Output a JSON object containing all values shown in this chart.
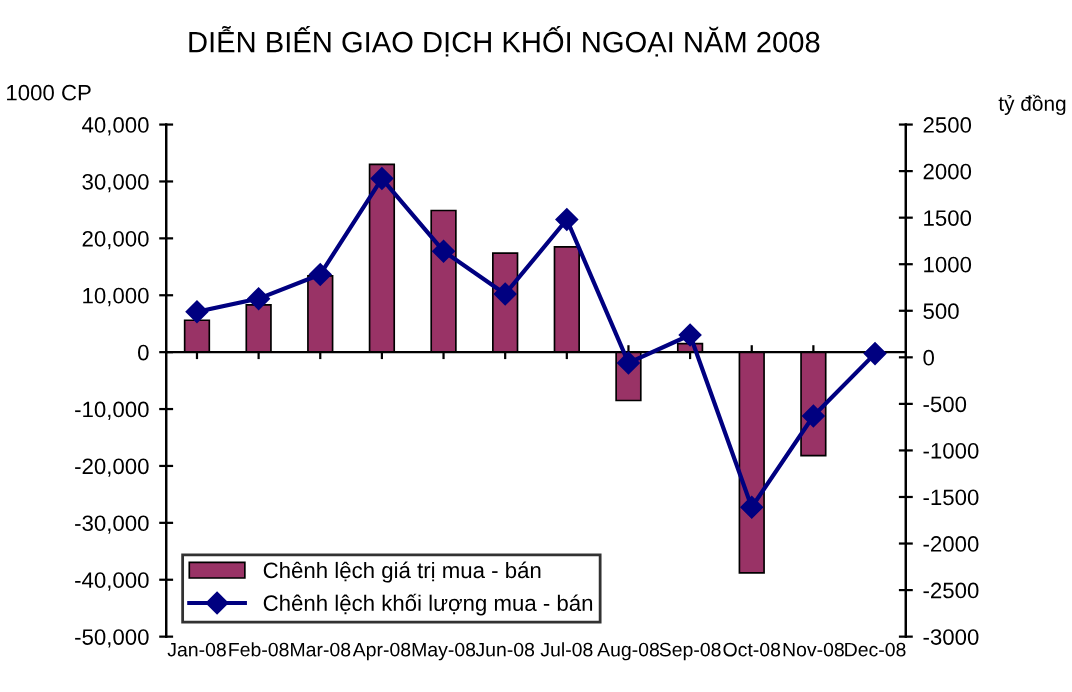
{
  "chart_data": {
    "type": "bar",
    "title": "DIỄN BIẾN GIAO DỊCH KHỐI NGOẠI NĂM 2008",
    "ylabel": "1000 CP",
    "y2label": "tỷ đồng",
    "categories": [
      "Jan-08",
      "Feb-08",
      "Mar-08",
      "Apr-08",
      "May-08",
      "Jun-08",
      "Jul-08",
      "Aug-08",
      "Sep-08",
      "Oct-08",
      "Nov-08",
      "Dec-08"
    ],
    "series": [
      {
        "name": "Chênh lệch giá trị mua - bán",
        "color": "#993366",
        "values": [
          5600,
          8300,
          13400,
          33000,
          24900,
          17400,
          18500,
          -8500,
          1500,
          -38800,
          -18200,
          null
        ]
      },
      {
        "name": "Chênh lệch khối lượng mua - bán",
        "type": "line",
        "axis": "y2",
        "color": "#000080",
        "marker": "diamond",
        "values": [
          490,
          630,
          890,
          1920,
          1140,
          680,
          1480,
          -60,
          240,
          -1610,
          -630,
          40
        ]
      }
    ],
    "ylim": [
      -50000,
      40000
    ],
    "yticks": [
      {
        "value": -50000,
        "label": "-50,000"
      },
      {
        "value": -40000,
        "label": "-40,000"
      },
      {
        "value": -30000,
        "label": "-30,000"
      },
      {
        "value": -20000,
        "label": "-20,000"
      },
      {
        "value": -10000,
        "label": "-10,000"
      },
      0,
      {
        "value": 10000,
        "label": "10,000"
      },
      {
        "value": 20000,
        "label": "20,000"
      },
      {
        "value": 30000,
        "label": "30,000"
      },
      {
        "value": 40000,
        "label": "40,000"
      }
    ],
    "y2lim": [
      -3000,
      2500
    ],
    "y2ticks": [
      -3000,
      -2500,
      -2000,
      -1500,
      -1000,
      -500,
      0,
      500,
      1000,
      1500,
      2000,
      2500
    ],
    "ref_lines": [
      {
        "axis": "y",
        "value": 0,
        "color": "#000000"
      }
    ],
    "grid": false,
    "legend": "bottom left"
  }
}
